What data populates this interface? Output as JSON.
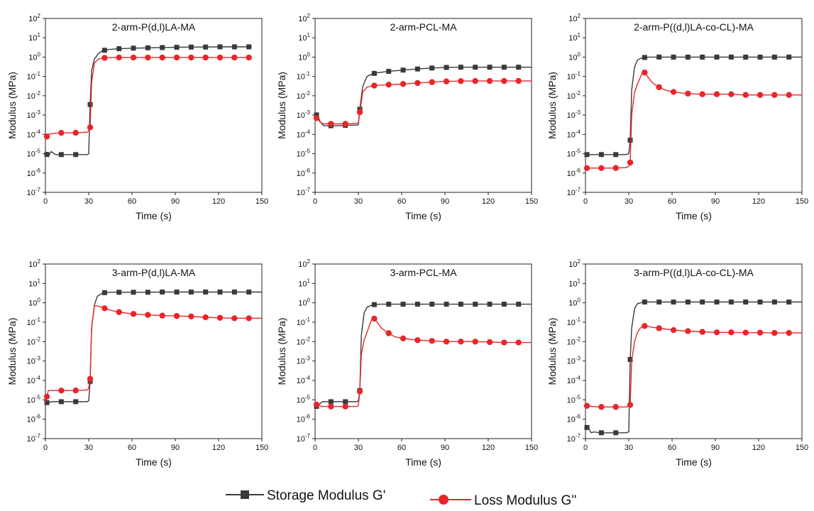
{
  "legend": {
    "storage_label": "Storage Modulus G'",
    "loss_label": "Loss Modulus G''"
  },
  "colors": {
    "storage": "#3a3a3a",
    "loss": "#e8262a"
  },
  "chart_data": [
    {
      "type": "line",
      "title": "2-arm-P(d,l)LA-MA",
      "xlabel": "Time (s)",
      "ylabel": "Modulus (MPa)",
      "xlim": [
        0,
        150
      ],
      "ylim": [
        1e-07,
        100
      ],
      "yscale": "log",
      "xticks": [
        "0",
        "30",
        "60",
        "90",
        "120",
        "150"
      ],
      "yticks_exp": [
        -7,
        -6,
        -5,
        -4,
        -3,
        -2,
        -1,
        0,
        1,
        2
      ],
      "series": [
        {
          "name": "Storage Modulus G'",
          "x": [
            0,
            2,
            4,
            7,
            10,
            15,
            20,
            25,
            29,
            30,
            31,
            32,
            34,
            37,
            40,
            45,
            50,
            60,
            70,
            80,
            90,
            100,
            110,
            120,
            130,
            140,
            143
          ],
          "y": [
            1.2e-05,
            7e-06,
            1.3e-05,
            9e-06,
            9e-06,
            9e-06,
            9e-06,
            9e-06,
            9e-06,
            1e-05,
            0.0035,
            0.2,
            0.8,
            1.6,
            2.2,
            2.5,
            2.7,
            2.9,
            3.0,
            3.1,
            3.2,
            3.3,
            3.3,
            3.4,
            3.4,
            3.4,
            3.4
          ],
          "markers_x": [
            1,
            11,
            21,
            31,
            41,
            51,
            61,
            71,
            81,
            91,
            101,
            111,
            121,
            131,
            141
          ]
        },
        {
          "name": "Loss Modulus G''",
          "x": [
            0,
            2,
            5,
            10,
            15,
            20,
            25,
            29,
            30,
            31,
            32,
            34,
            37,
            40,
            45,
            50,
            60,
            70,
            80,
            90,
            100,
            110,
            120,
            130,
            140,
            143
          ],
          "y": [
            6e-05,
            0.0001,
            0.00011,
            0.00012,
            0.00012,
            0.00012,
            0.000125,
            0.00013,
            0.00015,
            0.00023,
            0.05,
            0.5,
            0.8,
            0.9,
            0.95,
            0.95,
            0.95,
            0.95,
            0.95,
            0.95,
            0.95,
            0.95,
            0.95,
            0.95,
            0.95,
            0.95
          ],
          "markers_x": [
            1,
            11,
            21,
            31,
            41,
            51,
            61,
            71,
            81,
            91,
            101,
            111,
            121,
            131,
            141
          ]
        }
      ]
    },
    {
      "type": "line",
      "title": "2-arm-PCL-MA",
      "xlabel": "Time (s)",
      "ylabel": "Modulus (MPa)",
      "xlim": [
        0,
        150
      ],
      "ylim": [
        1e-07,
        100
      ],
      "yscale": "log",
      "xticks": [
        "0",
        "30",
        "60",
        "90",
        "120",
        "150"
      ],
      "yticks_exp": [
        -7,
        -6,
        -5,
        -4,
        -3,
        -2,
        -1,
        0,
        1,
        2
      ],
      "series": [
        {
          "name": "Storage Modulus G'",
          "x": [
            0,
            2,
            4,
            6,
            10,
            15,
            20,
            25,
            29,
            30,
            31,
            33,
            36,
            40,
            45,
            50,
            60,
            70,
            80,
            90,
            100,
            110,
            120,
            130,
            140,
            150
          ],
          "y": [
            0.0013,
            0.0008,
            0.0004,
            0.00028,
            0.00028,
            0.00028,
            0.00029,
            0.0003,
            0.0003,
            0.00032,
            0.002,
            0.03,
            0.1,
            0.14,
            0.16,
            0.18,
            0.21,
            0.24,
            0.27,
            0.29,
            0.3,
            0.3,
            0.3,
            0.3,
            0.3,
            0.3
          ],
          "markers_x": [
            1,
            11,
            21,
            31,
            41,
            51,
            61,
            71,
            81,
            91,
            101,
            111,
            121,
            131,
            141
          ]
        },
        {
          "name": "Loss Modulus G''",
          "x": [
            0,
            2,
            4,
            6,
            10,
            15,
            20,
            25,
            29,
            30,
            31,
            33,
            36,
            40,
            45,
            50,
            60,
            70,
            80,
            90,
            100,
            110,
            120,
            130,
            140,
            150
          ],
          "y": [
            0.0008,
            0.0006,
            0.0004,
            0.00035,
            0.00035,
            0.00035,
            0.00035,
            0.00036,
            0.00038,
            0.0004,
            0.0014,
            0.015,
            0.028,
            0.033,
            0.035,
            0.037,
            0.04,
            0.045,
            0.05,
            0.055,
            0.057,
            0.058,
            0.058,
            0.058,
            0.058,
            0.058
          ],
          "markers_x": [
            1,
            11,
            21,
            31,
            41,
            51,
            61,
            71,
            81,
            91,
            101,
            111,
            121,
            131,
            141
          ]
        }
      ]
    },
    {
      "type": "line",
      "title": "2-arm-P((d,l)LA-co-CL)-MA",
      "xlabel": "Time (s)",
      "ylabel": "Modulus (MPa)",
      "xlim": [
        0,
        150
      ],
      "ylim": [
        1e-07,
        100
      ],
      "yscale": "log",
      "xticks": [
        "0",
        "30",
        "60",
        "90",
        "120",
        "150"
      ],
      "yticks_exp": [
        -7,
        -6,
        -5,
        -4,
        -3,
        -2,
        -1,
        0,
        1,
        2
      ],
      "series": [
        {
          "name": "Storage Modulus G'",
          "x": [
            0,
            5,
            10,
            20,
            28,
            30,
            31,
            32,
            34,
            36,
            38,
            40,
            45,
            50,
            60,
            70,
            80,
            90,
            100,
            110,
            120,
            130,
            140,
            150
          ],
          "y": [
            9e-06,
            9e-06,
            9e-06,
            9e-06,
            9e-06,
            1e-05,
            5e-05,
            0.02,
            0.3,
            0.7,
            0.85,
            0.95,
            1.0,
            1.0,
            1.0,
            1.0,
            1.0,
            1.0,
            1.0,
            1.0,
            1.0,
            1.0,
            1.0,
            1.0
          ],
          "markers_x": [
            1,
            11,
            21,
            31,
            41,
            51,
            61,
            71,
            81,
            91,
            101,
            111,
            121,
            131,
            141
          ]
        },
        {
          "name": "Loss Modulus G''",
          "x": [
            0,
            5,
            10,
            20,
            28,
            30,
            31,
            32,
            34,
            36,
            38,
            40,
            43,
            46,
            50,
            55,
            60,
            70,
            80,
            90,
            100,
            110,
            120,
            130,
            140,
            150
          ],
          "y": [
            1.8e-06,
            1.8e-06,
            1.8e-06,
            1.8e-06,
            1.9e-06,
            2.2e-06,
            3.5e-06,
            0.001,
            0.015,
            0.04,
            0.09,
            0.2,
            0.1,
            0.05,
            0.03,
            0.02,
            0.016,
            0.013,
            0.012,
            0.012,
            0.012,
            0.011,
            0.011,
            0.011,
            0.011,
            0.011
          ],
          "markers_x": [
            1,
            11,
            21,
            31,
            41,
            51,
            61,
            71,
            81,
            91,
            101,
            111,
            121,
            131,
            141
          ]
        }
      ]
    },
    {
      "type": "line",
      "title": "3-arm-P(d,l)LA-MA",
      "xlabel": "Time (s)",
      "ylabel": "Modulus (MPa)",
      "xlim": [
        0,
        150
      ],
      "ylim": [
        1e-07,
        100
      ],
      "yscale": "log",
      "xticks": [
        "0",
        "30",
        "60",
        "90",
        "120",
        "150"
      ],
      "yticks_exp": [
        -7,
        -6,
        -5,
        -4,
        -3,
        -2,
        -1,
        0,
        1,
        2
      ],
      "series": [
        {
          "name": "Storage Modulus G'",
          "x": [
            0,
            5,
            10,
            20,
            29,
            30,
            31,
            32,
            34,
            36,
            40,
            45,
            50,
            60,
            70,
            80,
            90,
            100,
            110,
            120,
            130,
            140,
            150
          ],
          "y": [
            7e-06,
            8e-06,
            8e-06,
            8e-06,
            8e-06,
            9e-06,
            9e-05,
            0.05,
            0.8,
            2.2,
            3.3,
            3.5,
            3.5,
            3.5,
            3.5,
            3.6,
            3.6,
            3.6,
            3.6,
            3.6,
            3.6,
            3.6,
            3.6
          ],
          "markers_x": [
            1,
            11,
            21,
            31,
            41,
            51,
            61,
            71,
            81,
            91,
            101,
            111,
            121,
            131,
            141
          ]
        },
        {
          "name": "Loss Modulus G''",
          "x": [
            0,
            2,
            5,
            10,
            20,
            29,
            30,
            31,
            32,
            34,
            36,
            40,
            45,
            50,
            60,
            70,
            80,
            90,
            100,
            110,
            120,
            130,
            140,
            150
          ],
          "y": [
            7e-06,
            3e-05,
            3e-05,
            3e-05,
            3e-05,
            3.2e-05,
            4e-05,
            0.00012,
            0.05,
            0.7,
            0.7,
            0.55,
            0.42,
            0.34,
            0.27,
            0.24,
            0.22,
            0.21,
            0.2,
            0.18,
            0.17,
            0.16,
            0.16,
            0.16
          ],
          "markers_x": [
            1,
            11,
            21,
            31,
            41,
            51,
            61,
            71,
            81,
            91,
            101,
            111,
            121,
            131,
            141
          ]
        }
      ]
    },
    {
      "type": "line",
      "title": "3-arm-PCL-MA",
      "xlabel": "Time (s)",
      "ylabel": "Modulus (MPa)",
      "xlim": [
        0,
        150
      ],
      "ylim": [
        1e-07,
        100
      ],
      "yscale": "log",
      "xticks": [
        "0",
        "30",
        "60",
        "90",
        "120",
        "150"
      ],
      "yticks_exp": [
        -7,
        -6,
        -5,
        -4,
        -3,
        -2,
        -1,
        0,
        1,
        2
      ],
      "series": [
        {
          "name": "Storage Modulus G'",
          "x": [
            0,
            5,
            10,
            20,
            29,
            30,
            31,
            32,
            34,
            36,
            40,
            45,
            50,
            60,
            70,
            80,
            90,
            100,
            110,
            120,
            130,
            140,
            150
          ],
          "y": [
            4e-06,
            8e-06,
            8e-06,
            8e-06,
            8e-06,
            9e-06,
            3e-05,
            0.02,
            0.3,
            0.6,
            0.8,
            0.85,
            0.85,
            0.85,
            0.85,
            0.85,
            0.85,
            0.85,
            0.85,
            0.85,
            0.85,
            0.85,
            0.85
          ],
          "markers_x": [
            1,
            11,
            21,
            31,
            41,
            51,
            61,
            71,
            81,
            91,
            101,
            111,
            121,
            131,
            141
          ]
        },
        {
          "name": "Loss Modulus G''",
          "x": [
            0,
            5,
            10,
            20,
            29,
            30,
            31,
            32,
            34,
            36,
            38,
            40,
            43,
            46,
            50,
            55,
            60,
            70,
            80,
            90,
            100,
            110,
            120,
            130,
            140,
            150
          ],
          "y": [
            6e-06,
            4.5e-06,
            4.5e-06,
            4.5e-06,
            4.6e-06,
            5e-06,
            2.7e-05,
            0.002,
            0.012,
            0.03,
            0.08,
            0.19,
            0.1,
            0.05,
            0.03,
            0.018,
            0.015,
            0.012,
            0.011,
            0.01,
            0.01,
            0.01,
            0.0095,
            0.009,
            0.009,
            0.009
          ],
          "markers_x": [
            1,
            11,
            21,
            31,
            41,
            51,
            61,
            71,
            81,
            91,
            101,
            111,
            121,
            131,
            141
          ]
        }
      ]
    },
    {
      "type": "line",
      "title": "3-arm-P((d,l)LA-co-CL)-MA",
      "xlabel": "Time (s)",
      "ylabel": "Modulus (MPa)",
      "xlim": [
        0,
        150
      ],
      "ylim": [
        1e-07,
        100
      ],
      "yscale": "log",
      "xticks": [
        "0",
        "30",
        "60",
        "90",
        "120",
        "150"
      ],
      "yticks_exp": [
        -7,
        -6,
        -5,
        -4,
        -3,
        -2,
        -1,
        0,
        1,
        2
      ],
      "series": [
        {
          "name": "Storage Modulus G'",
          "x": [
            0,
            2,
            4,
            6,
            10,
            15,
            20,
            25,
            28,
            30,
            31,
            32,
            34,
            36,
            40,
            45,
            50,
            60,
            70,
            80,
            90,
            100,
            110,
            120,
            130,
            140,
            150
          ],
          "y": [
            4e-07,
            3.5e-07,
            2e-07,
            2.2e-07,
            2e-07,
            2e-07,
            2e-07,
            2e-07,
            2e-07,
            2.2e-07,
            0.0012,
            0.05,
            0.5,
            0.9,
            1.1,
            1.1,
            1.1,
            1.1,
            1.1,
            1.1,
            1.1,
            1.1,
            1.1,
            1.1,
            1.1,
            1.1,
            1.1
          ],
          "markers_x": [
            1,
            11,
            21,
            31,
            41,
            51,
            61,
            71,
            81,
            91,
            101,
            111,
            121,
            131,
            141
          ]
        },
        {
          "name": "Loss Modulus G''",
          "x": [
            0,
            5,
            10,
            20,
            28,
            30,
            31,
            32,
            34,
            36,
            38,
            40,
            43,
            46,
            50,
            55,
            60,
            70,
            80,
            90,
            100,
            110,
            120,
            130,
            140,
            150
          ],
          "y": [
            5e-06,
            4.5e-06,
            4.3e-06,
            4.3e-06,
            4.3e-06,
            4.5e-06,
            5.5e-06,
            0.001,
            0.01,
            0.03,
            0.05,
            0.065,
            0.062,
            0.055,
            0.05,
            0.045,
            0.04,
            0.035,
            0.032,
            0.03,
            0.03,
            0.029,
            0.029,
            0.028,
            0.028,
            0.028
          ],
          "markers_x": [
            1,
            11,
            21,
            31,
            41,
            51,
            61,
            71,
            81,
            91,
            101,
            111,
            121,
            131,
            141
          ]
        }
      ]
    }
  ]
}
